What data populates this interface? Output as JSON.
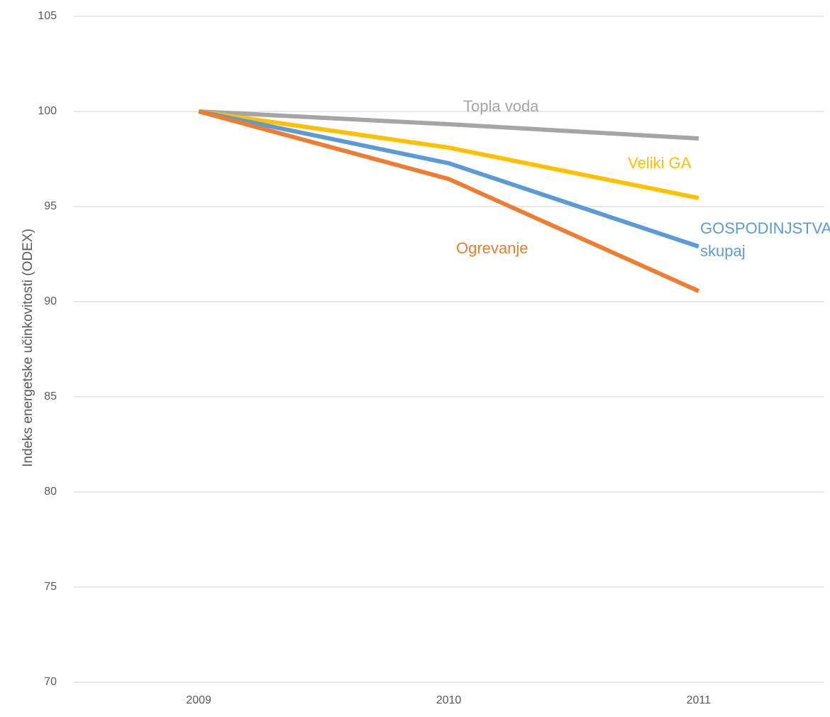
{
  "chart_data": {
    "type": "line",
    "y_label": "Indeks energetske učinkovitosti (ODEX)",
    "categories": [
      "2009",
      "2010",
      "2011"
    ],
    "series": [
      {
        "name": "Topla voda",
        "color": "#a5a5a5",
        "values": [
          100,
          99.33,
          98.58
        ]
      },
      {
        "name": "Veliki GA",
        "color": "#ffc000",
        "values": [
          100,
          98.1,
          95.45
        ]
      },
      {
        "name": "GOSPODINJSTVA skupaj",
        "color": "#5b9bd5",
        "values": [
          100,
          97.28,
          92.9
        ]
      },
      {
        "name": "Ogrevanje",
        "color": "#ed7d31",
        "values": [
          100,
          96.45,
          90.56
        ]
      }
    ],
    "ylim": [
      70,
      105
    ],
    "yticks": [
      70,
      75,
      80,
      85,
      90,
      95,
      100,
      105
    ],
    "grid": true
  }
}
